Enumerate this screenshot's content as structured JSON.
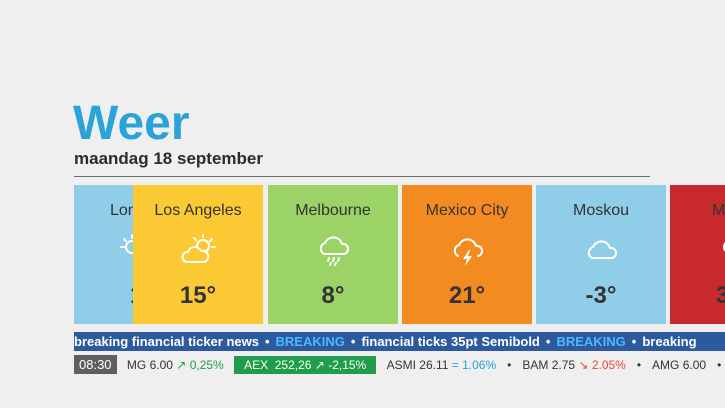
{
  "header": {
    "title": "Weer",
    "date": "maandag 18 september"
  },
  "cities": [
    {
      "name": "Londen",
      "temp": "1",
      "icon": "sun-cloud-icon",
      "color": "#8fcde8"
    },
    {
      "name": "Los Angeles",
      "temp": "15°",
      "icon": "sun-cloud-icon",
      "color": "#fbc933"
    },
    {
      "name": "Melbourne",
      "temp": "8°",
      "icon": "rain-cloud-icon",
      "color": "#9bd366"
    },
    {
      "name": "Mexico City",
      "temp": "21°",
      "icon": "thunder-cloud-icon",
      "color": "#f48b21"
    },
    {
      "name": "Moskou",
      "temp": "-3°",
      "icon": "cloud-icon",
      "color": "#8fcde8"
    },
    {
      "name": "M",
      "temp": "3",
      "icon": "sun-cloud-icon",
      "color": "#c8292c"
    }
  ],
  "ticker": {
    "items": [
      "breaking financial ticker news",
      "BREAKING",
      "financial ticks 35pt Semibold",
      "BREAKING",
      "breaking"
    ]
  },
  "market": {
    "time": "08:30",
    "items": [
      {
        "name": "MG",
        "value": "6.00",
        "change": "0,25%",
        "dir": "up"
      },
      {
        "name": "AEX",
        "value": "252,26",
        "change": "-2,15%",
        "dir": "up",
        "highlight": true
      },
      {
        "name": "ASMI",
        "value": "26.11",
        "change": "1.06%",
        "dir": "eq"
      },
      {
        "name": "BAM",
        "value": "2.75",
        "change": "2.05%",
        "dir": "down"
      },
      {
        "name": "AMG",
        "value": "6.00",
        "change": "",
        "dir": ""
      }
    ]
  }
}
